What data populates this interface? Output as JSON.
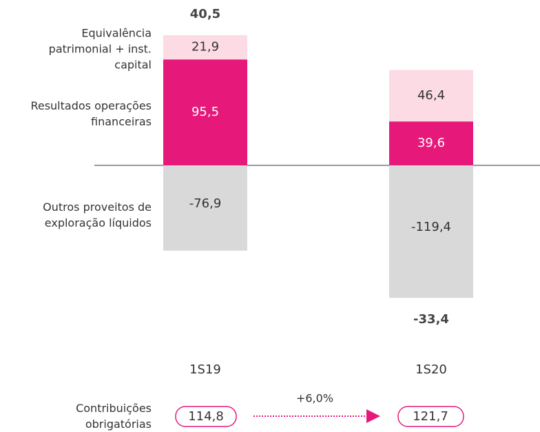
{
  "chart_data": {
    "type": "bar",
    "stacked": true,
    "categories": [
      "1S19",
      "1S20"
    ],
    "series": [
      {
        "name": "Outros proveitos de exploração líquidos",
        "color": "#d9d9d9",
        "values": [
          -76.9,
          -119.4
        ],
        "value_labels": [
          "-76,9",
          "-119,4"
        ]
      },
      {
        "name": "Resultados operações financeiras",
        "color": "#e6197a",
        "values": [
          95.5,
          39.6
        ],
        "value_labels": [
          "95,5",
          "39,6"
        ]
      },
      {
        "name": "Equivalência patrimonial + inst. capital",
        "color": "#fcdbe5",
        "values": [
          21.9,
          46.4
        ],
        "value_labels": [
          "21,9",
          "46,4"
        ]
      }
    ],
    "totals": [
      40.5,
      -33.4
    ],
    "total_labels": [
      "40,5",
      "-33,4"
    ]
  },
  "contributions": {
    "label": "Contribuições obrigatórias",
    "values": [
      "114,8",
      "121,7"
    ],
    "change": "+6,0%"
  }
}
